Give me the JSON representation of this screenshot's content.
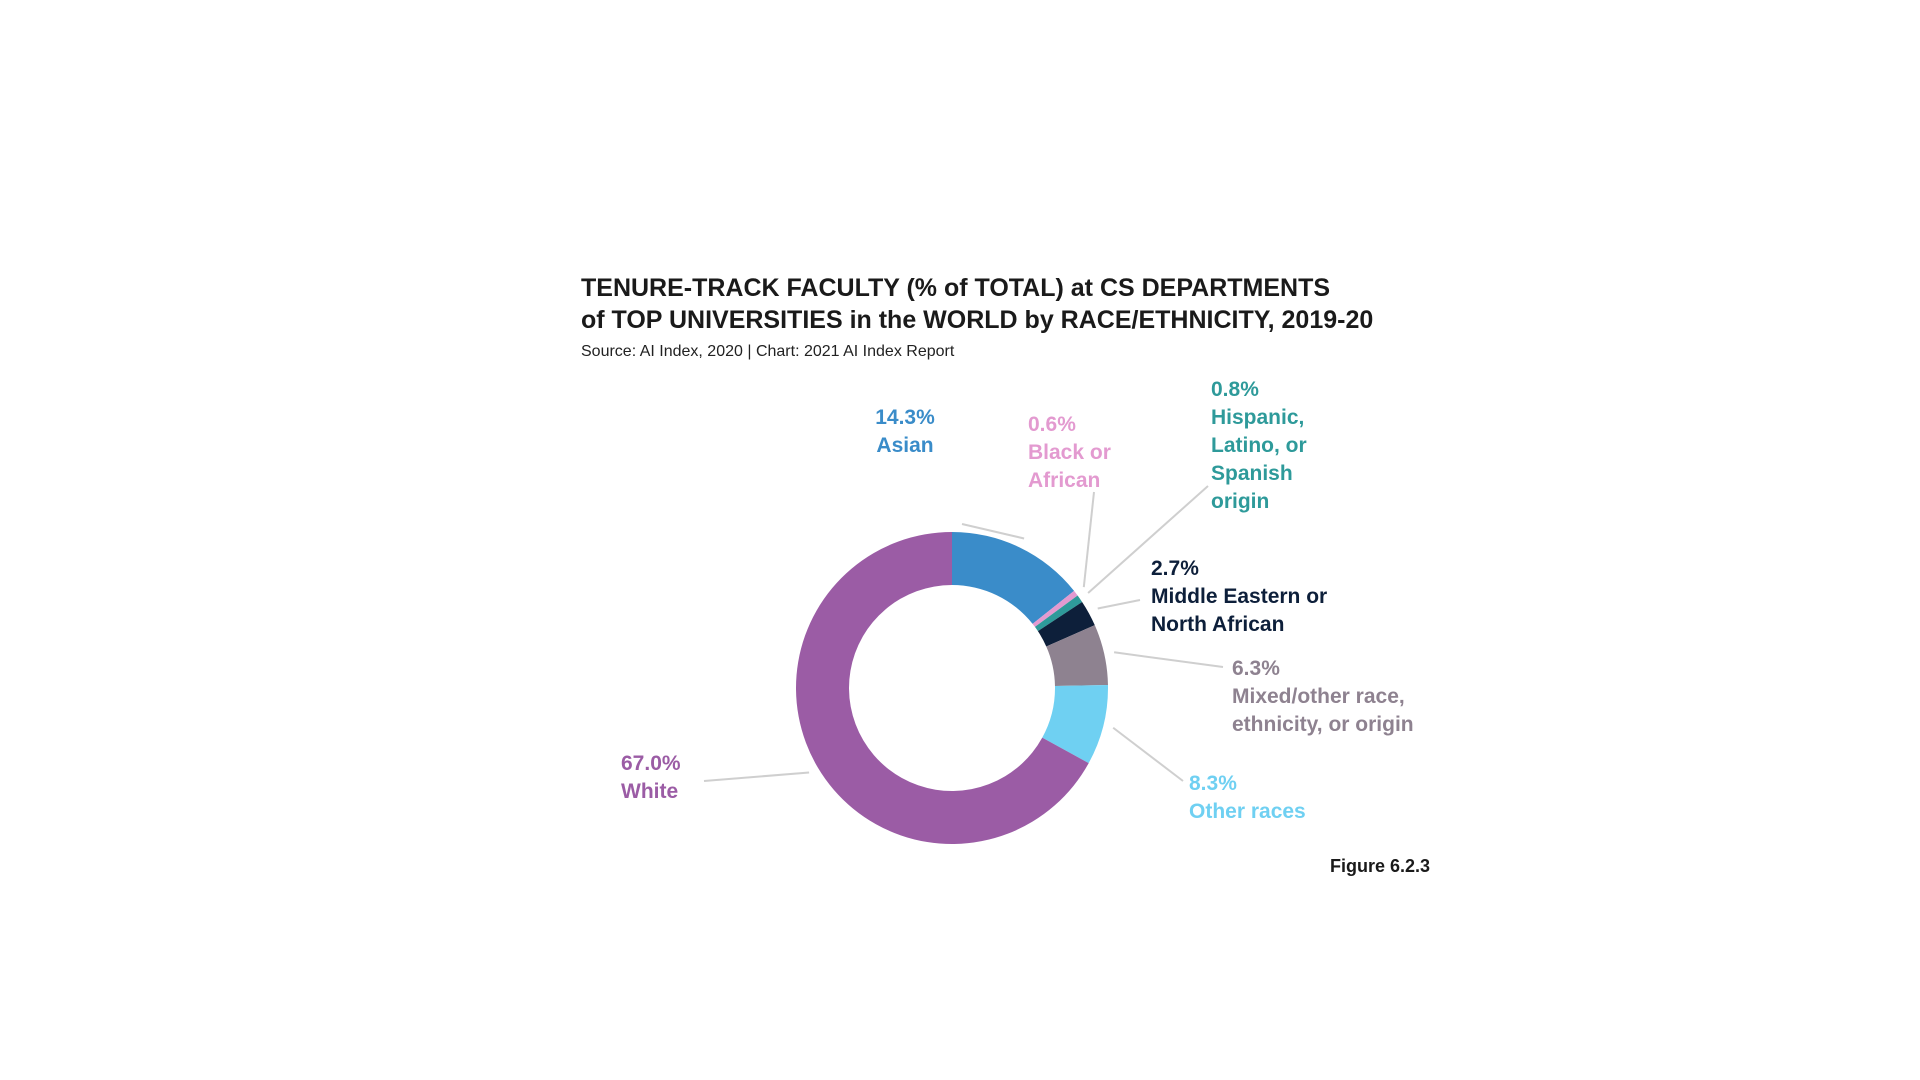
{
  "header": {
    "title_line1": "TENURE-TRACK FACULTY (% of TOTAL) at CS DEPARTMENTS",
    "title_line2": "of TOP UNIVERSITIES in the WORLD by RACE/ETHNICITY, 2019-20",
    "source": "Source: AI Index, 2020 | Chart: 2021 AI Index Report"
  },
  "footer": {
    "figure_label": "Figure 6.2.3"
  },
  "chart_data": {
    "type": "pie",
    "donut": true,
    "title": "TENURE-TRACK FACULTY (% of TOTAL) at CS DEPARTMENTS of TOP UNIVERSITIES in the WORLD by RACE/ETHNICITY, 2019-20",
    "unit": "%",
    "slices": [
      {
        "label": "Asian",
        "name_lines": [
          "Asian"
        ],
        "value": 14.3,
        "value_label": "14.3%",
        "color": "#3a8cc9"
      },
      {
        "label": "Black or African",
        "name_lines": [
          "Black or",
          "African"
        ],
        "value": 0.6,
        "value_label": "0.6%",
        "color": "#e39ad0"
      },
      {
        "label": "Hispanic, Latino, or Spanish origin",
        "name_lines": [
          "Hispanic,",
          "Latino, or",
          "Spanish",
          "origin"
        ],
        "value": 0.8,
        "value_label": "0.8%",
        "color": "#2e9a9a"
      },
      {
        "label": "Middle Eastern or North African",
        "name_lines": [
          "Middle Eastern or",
          "North African"
        ],
        "value": 2.7,
        "value_label": "2.7%",
        "color": "#0d1f3a"
      },
      {
        "label": "Mixed/other race, ethnicity, or origin",
        "name_lines": [
          "Mixed/other race,",
          "ethnicity, or origin"
        ],
        "value": 6.3,
        "value_label": "6.3%",
        "color": "#8e8290"
      },
      {
        "label": "Other races",
        "name_lines": [
          "Other races"
        ],
        "value": 8.3,
        "value_label": "8.3%",
        "color": "#6fd0f2"
      },
      {
        "label": "White",
        "name_lines": [
          "White"
        ],
        "value": 67.0,
        "value_label": "67.0%",
        "color": "#9b5ca5"
      }
    ]
  }
}
